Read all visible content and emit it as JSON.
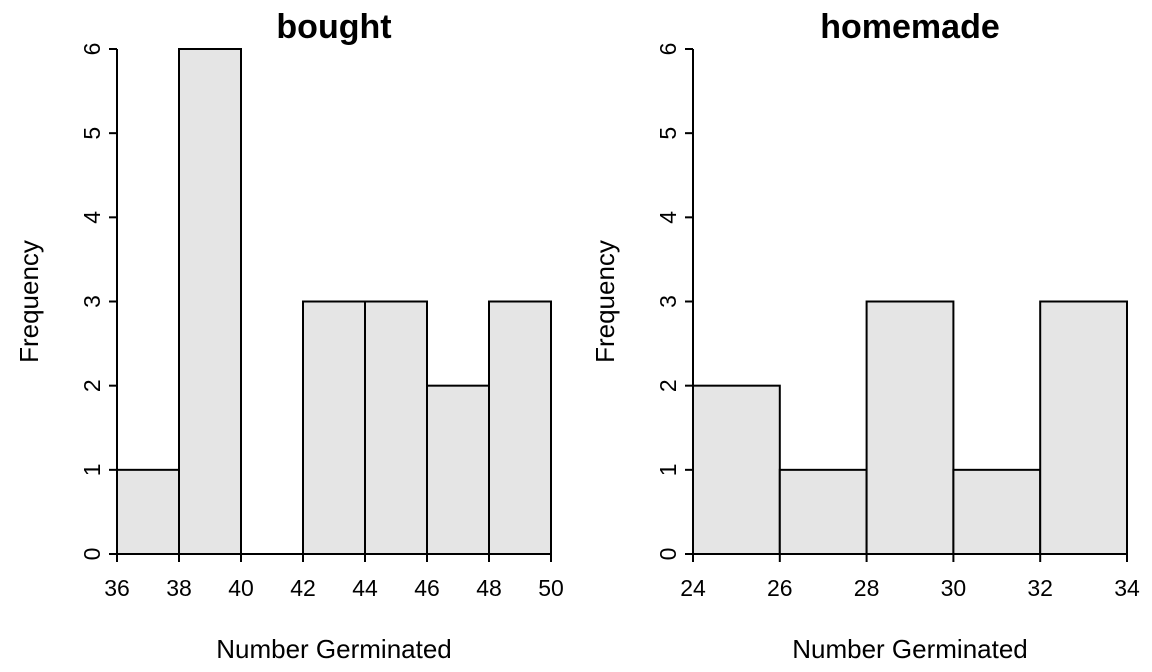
{
  "chart_data": [
    {
      "type": "bar",
      "title": "bought",
      "xlabel": "Number Germinated",
      "ylabel": "Frequency",
      "bin_edges": [
        36,
        38,
        40,
        42,
        44,
        46,
        48,
        50
      ],
      "values": [
        1,
        6,
        0,
        3,
        3,
        2,
        3
      ],
      "xlim": [
        36,
        50
      ],
      "ylim": [
        0,
        6
      ],
      "xticks": [
        "36",
        "38",
        "40",
        "42",
        "44",
        "46",
        "48",
        "50"
      ],
      "yticks": [
        "0",
        "1",
        "2",
        "3",
        "4",
        "5",
        "6"
      ],
      "bar_color": "#e5e5e5",
      "grid": false
    },
    {
      "type": "bar",
      "title": "homemade",
      "xlabel": "Number Germinated",
      "ylabel": "Frequency",
      "bin_edges": [
        24,
        26,
        28,
        30,
        32,
        34
      ],
      "values": [
        2,
        1,
        3,
        1,
        3
      ],
      "xlim": [
        24,
        34
      ],
      "ylim": [
        0,
        6
      ],
      "xticks": [
        "24",
        "26",
        "28",
        "30",
        "32",
        "34"
      ],
      "yticks": [
        "0",
        "1",
        "2",
        "3",
        "4",
        "5",
        "6"
      ],
      "bar_color": "#e5e5e5",
      "grid": false
    }
  ]
}
